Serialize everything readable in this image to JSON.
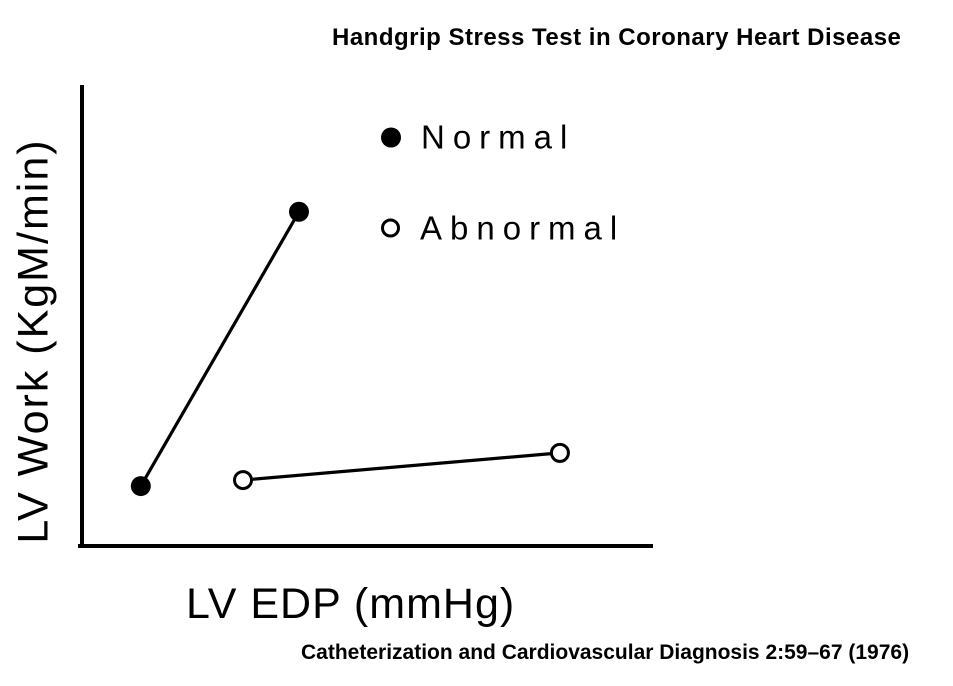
{
  "figure": {
    "title": "Handgrip Stress Test in Coronary Heart Disease",
    "citation": "Catheterization and Cardiovascular Diagnosis 2:59–67 (1976)"
  },
  "axes": {
    "x_label": "LV EDP (mmHg)",
    "y_label": "LV Work (KgM/min)"
  },
  "legend": {
    "items": [
      {
        "label": "Normal",
        "marker": "filled-circle"
      },
      {
        "label": "Abnormal",
        "marker": "open-circle"
      }
    ]
  },
  "colors": {
    "ink": "#000000",
    "background": "#ffffff"
  },
  "chart_data": {
    "type": "line",
    "title": "Handgrip Stress Test in Coronary Heart Disease",
    "xlabel": "LV EDP (mmHg)",
    "ylabel": "LV Work (KgM/min)",
    "grid": false,
    "tick_labels": "none (axes are unnumbered in the figure)",
    "legend_position": "upper right inside plot",
    "axis_range_units": "percent of visible axis span",
    "series": [
      {
        "name": "Normal",
        "marker": "filled-circle",
        "points_pct_of_axis": [
          {
            "x": 10.3,
            "y": 13.0
          },
          {
            "x": 38.0,
            "y": 72.5
          }
        ]
      },
      {
        "name": "Abnormal",
        "marker": "open-circle",
        "points_pct_of_axis": [
          {
            "x": 28.2,
            "y": 14.3
          },
          {
            "x": 83.7,
            "y": 20.2
          }
        ]
      }
    ]
  }
}
